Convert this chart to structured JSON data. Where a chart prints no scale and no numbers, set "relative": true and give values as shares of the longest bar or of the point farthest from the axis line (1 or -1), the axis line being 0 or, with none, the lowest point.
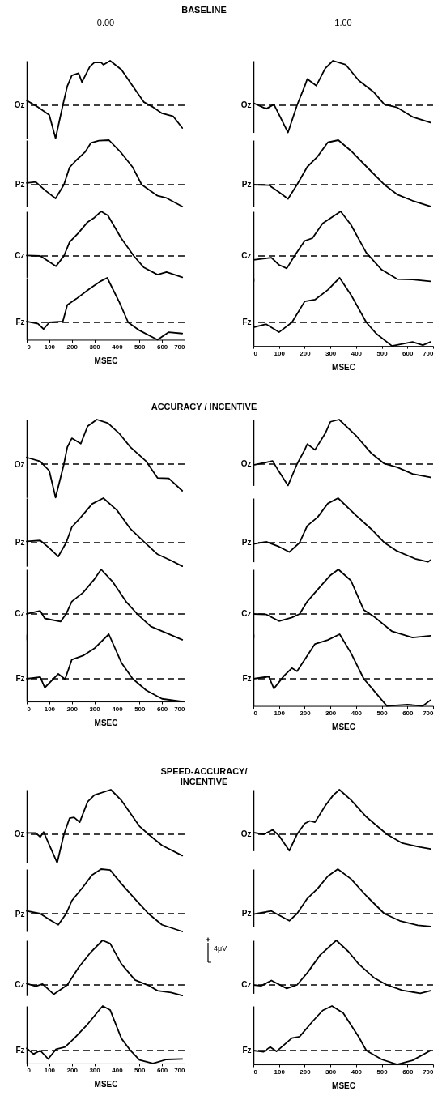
{
  "chart_data": [
    {
      "type": "line",
      "title": "BASELINE",
      "subtitle": "0.00",
      "ylabel": "Oz",
      "relative": true,
      "xlim": [
        0,
        700
      ],
      "tick_labels": false,
      "ref_lines": [
        {
          "axis": "y",
          "value": 0,
          "line_style": "dashed"
        }
      ],
      "x": [
        0,
        50,
        100,
        128,
        160,
        180,
        200,
        230,
        245,
        280,
        300,
        330,
        340,
        370,
        420,
        470,
        520,
        560,
        600,
        650,
        690
      ],
      "series": [
        {
          "color": "#000000",
          "values": [
            0.11,
            -0.04,
            -0.22,
            -0.74,
            0,
            0.43,
            0.67,
            0.72,
            0.52,
            0.87,
            0.96,
            0.96,
            0.91,
            1,
            0.8,
            0.43,
            0.07,
            -0.04,
            -0.18,
            -0.25,
            -0.51
          ]
        }
      ]
    },
    {
      "type": "line",
      "ylabel": "Pz",
      "relative": true,
      "xlim": [
        0,
        700
      ],
      "tick_labels": false,
      "ref_lines": [
        {
          "axis": "y",
          "value": 0,
          "line_style": "dashed"
        }
      ],
      "x": [
        0,
        40,
        80,
        128,
        165,
        190,
        220,
        260,
        285,
        320,
        365,
        420,
        470,
        510,
        580,
        620,
        690
      ],
      "series": [
        {
          "color": "#000000",
          "values": [
            0.04,
            0.06,
            -0.12,
            -0.31,
            0,
            0.39,
            0.55,
            0.74,
            0.94,
            0.99,
            1,
            0.71,
            0.39,
            0,
            -0.25,
            -0.3,
            -0.49
          ]
        }
      ]
    },
    {
      "type": "line",
      "ylabel": "Cz",
      "relative": true,
      "xlim": [
        0,
        700
      ],
      "tick_labels": false,
      "ref_lines": [
        {
          "axis": "y",
          "value": 0,
          "line_style": "dashed"
        }
      ],
      "x": [
        0,
        60,
        100,
        130,
        165,
        190,
        230,
        270,
        300,
        330,
        360,
        420,
        475,
        520,
        580,
        620,
        690
      ],
      "series": [
        {
          "color": "#000000",
          "values": [
            0.01,
            0,
            -0.13,
            -0.23,
            0,
            0.31,
            0.52,
            0.76,
            0.86,
            1,
            0.91,
            0.39,
            0,
            -0.26,
            -0.42,
            -0.36,
            -0.48
          ]
        }
      ]
    },
    {
      "type": "line",
      "ylabel": "Fz",
      "xlabel": "MSEC",
      "relative": true,
      "xlim": [
        0,
        700
      ],
      "xticks": [
        0,
        100,
        200,
        300,
        400,
        500,
        600,
        700
      ],
      "tick_labels": "x",
      "ref_lines": [
        {
          "axis": "y",
          "value": 0,
          "line_style": "dashed"
        }
      ],
      "x": [
        0,
        50,
        75,
        100,
        160,
        180,
        220,
        280,
        330,
        357,
        410,
        450,
        500,
        580,
        630,
        690
      ],
      "series": [
        {
          "color": "#000000",
          "values": [
            0.02,
            -0.03,
            -0.15,
            0,
            0.02,
            0.39,
            0.53,
            0.76,
            0.93,
            1,
            0.46,
            0,
            -0.18,
            -0.39,
            -0.22,
            -0.25
          ]
        }
      ]
    },
    {
      "type": "line",
      "subtitle": "1.00",
      "ylabel": "Oz",
      "relative": true,
      "xlim": [
        0,
        700
      ],
      "tick_labels": false,
      "ref_lines": [
        {
          "axis": "y",
          "value": 0,
          "line_style": "dashed"
        }
      ],
      "x": [
        0,
        50,
        80,
        135,
        170,
        200,
        210,
        245,
        280,
        310,
        360,
        410,
        470,
        510,
        560,
        620,
        690
      ],
      "series": [
        {
          "color": "#000000",
          "values": [
            0.05,
            -0.08,
            0.02,
            -0.61,
            0,
            0.43,
            0.59,
            0.44,
            0.83,
            1,
            0.91,
            0.56,
            0.29,
            0.02,
            -0.05,
            -0.26,
            -0.39
          ]
        }
      ]
    },
    {
      "type": "line",
      "ylabel": "Pz",
      "relative": true,
      "xlim": [
        0,
        700
      ],
      "tick_labels": false,
      "ref_lines": [
        {
          "axis": "y",
          "value": 0,
          "line_style": "dashed"
        }
      ],
      "x": [
        0,
        60,
        100,
        135,
        170,
        210,
        250,
        290,
        331,
        380,
        450,
        510,
        560,
        620,
        690
      ],
      "series": [
        {
          "color": "#000000",
          "values": [
            0,
            -0.01,
            -0.17,
            -0.32,
            0,
            0.4,
            0.63,
            0.95,
            1,
            0.76,
            0.35,
            0,
            -0.22,
            -0.36,
            -0.49
          ]
        }
      ]
    },
    {
      "type": "line",
      "ylabel": "Cz",
      "relative": true,
      "xlim": [
        0,
        700
      ],
      "tick_labels": false,
      "ref_lines": [
        {
          "axis": "y",
          "value": 0,
          "line_style": "dashed"
        }
      ],
      "x": [
        0,
        70,
        100,
        130,
        160,
        200,
        230,
        270,
        340,
        380,
        440,
        500,
        560,
        620,
        690
      ],
      "series": [
        {
          "color": "#000000",
          "values": [
            -0.09,
            -0.04,
            -0.2,
            -0.28,
            0,
            0.34,
            0.4,
            0.73,
            1,
            0.7,
            0.07,
            -0.31,
            -0.52,
            -0.53,
            -0.57
          ]
        }
      ]
    },
    {
      "type": "line",
      "ylabel": "Fz",
      "xlabel": "MSEC",
      "relative": true,
      "xlim": [
        0,
        700
      ],
      "xticks": [
        0,
        100,
        200,
        300,
        400,
        500,
        600,
        700
      ],
      "tick_labels": "x",
      "ref_lines": [
        {
          "axis": "y",
          "value": 0,
          "line_style": "dashed"
        }
      ],
      "x": [
        0,
        50,
        100,
        150,
        200,
        240,
        290,
        336,
        380,
        440,
        480,
        540,
        620,
        660,
        690
      ],
      "series": [
        {
          "color": "#000000",
          "values": [
            -0.11,
            -0.04,
            -0.22,
            0,
            0.47,
            0.51,
            0.73,
            1,
            0.62,
            0,
            -0.26,
            -0.53,
            -0.44,
            -0.51,
            -0.44
          ]
        }
      ]
    },
    {
      "type": "line",
      "title": "ACCURACY / INCENTIVE",
      "ylabel": "Oz",
      "relative": true,
      "xlim": [
        0,
        700
      ],
      "tick_labels": false,
      "ref_lines": [
        {
          "axis": "y",
          "value": 0,
          "line_style": "dashed"
        }
      ],
      "x": [
        0,
        60,
        100,
        128,
        165,
        180,
        200,
        240,
        270,
        311,
        360,
        410,
        460,
        530,
        580,
        630,
        690
      ],
      "series": [
        {
          "color": "#000000",
          "values": [
            0.15,
            0.06,
            -0.15,
            -0.75,
            0,
            0.38,
            0.58,
            0.46,
            0.85,
            1,
            0.92,
            0.69,
            0.38,
            0.06,
            -0.31,
            -0.32,
            -0.6
          ]
        }
      ]
    },
    {
      "type": "line",
      "ylabel": "Pz",
      "relative": true,
      "xlim": [
        0,
        700
      ],
      "tick_labels": false,
      "ref_lines": [
        {
          "axis": "y",
          "value": 0,
          "line_style": "dashed"
        }
      ],
      "x": [
        0,
        60,
        100,
        140,
        175,
        200,
        240,
        290,
        340,
        400,
        460,
        520,
        580,
        640,
        690
      ],
      "series": [
        {
          "color": "#000000",
          "values": [
            0.03,
            0.05,
            -0.12,
            -0.31,
            0,
            0.35,
            0.57,
            0.87,
            1,
            0.73,
            0.31,
            0.02,
            -0.26,
            -0.4,
            -0.53
          ]
        }
      ]
    },
    {
      "type": "line",
      "ylabel": "Cz",
      "relative": true,
      "xlim": [
        0,
        700
      ],
      "tick_labels": false,
      "ref_lines": [
        {
          "axis": "y",
          "value": 0,
          "line_style": "dashed"
        }
      ],
      "x": [
        0,
        60,
        80,
        150,
        175,
        200,
        250,
        300,
        330,
        380,
        440,
        490,
        550,
        620,
        690
      ],
      "series": [
        {
          "color": "#000000",
          "values": [
            0,
            0.07,
            -0.1,
            -0.17,
            0,
            0.28,
            0.48,
            0.78,
            1,
            0.73,
            0.28,
            0,
            -0.28,
            -0.43,
            -0.58
          ]
        }
      ]
    },
    {
      "type": "line",
      "ylabel": "Fz",
      "xlabel": "MSEC",
      "relative": true,
      "xlim": [
        0,
        700
      ],
      "xticks": [
        0,
        100,
        200,
        300,
        400,
        500,
        600,
        700
      ],
      "tick_labels": "x",
      "ref_lines": [
        {
          "axis": "y",
          "value": 0,
          "line_style": "dashed"
        }
      ],
      "x": [
        0,
        60,
        80,
        140,
        170,
        200,
        250,
        300,
        364,
        420,
        470,
        530,
        600,
        690
      ],
      "series": [
        {
          "color": "#000000",
          "values": [
            0,
            0.04,
            -0.2,
            0.11,
            -0.01,
            0.43,
            0.52,
            0.68,
            1,
            0.36,
            0,
            -0.26,
            -0.45,
            -0.51
          ]
        }
      ]
    },
    {
      "type": "line",
      "ylabel": "Oz",
      "relative": true,
      "xlim": [
        0,
        700
      ],
      "tick_labels": false,
      "ref_lines": [
        {
          "axis": "y",
          "value": 0,
          "line_style": "dashed"
        }
      ],
      "x": [
        0,
        50,
        75,
        100,
        135,
        170,
        200,
        210,
        240,
        280,
        300,
        334,
        400,
        460,
        510,
        560,
        620,
        690
      ],
      "series": [
        {
          "color": "#000000",
          "values": [
            -0.02,
            0.04,
            0.07,
            -0.17,
            -0.48,
            0,
            0.32,
            0.45,
            0.32,
            0.69,
            0.95,
            1,
            0.64,
            0.24,
            0.01,
            -0.07,
            -0.22,
            -0.3
          ]
        }
      ]
    },
    {
      "type": "line",
      "ylabel": "Pz",
      "relative": true,
      "xlim": [
        0,
        700
      ],
      "tick_labels": false,
      "ref_lines": [
        {
          "axis": "y",
          "value": 0,
          "line_style": "dashed"
        }
      ],
      "x": [
        0,
        50,
        100,
        140,
        180,
        210,
        250,
        290,
        330,
        400,
        460,
        510,
        560,
        630,
        680,
        690
      ],
      "series": [
        {
          "color": "#000000",
          "values": [
            -0.03,
            0.02,
            -0.09,
            -0.21,
            0,
            0.38,
            0.57,
            0.88,
            1,
            0.61,
            0.3,
            0,
            -0.19,
            -0.36,
            -0.43,
            -0.39
          ]
        }
      ]
    },
    {
      "type": "line",
      "ylabel": "Cz",
      "relative": true,
      "xlim": [
        0,
        700
      ],
      "tick_labels": false,
      "ref_lines": [
        {
          "axis": "y",
          "value": 0,
          "line_style": "dashed"
        }
      ],
      "x": [
        0,
        50,
        100,
        150,
        180,
        210,
        260,
        300,
        331,
        380,
        430,
        470,
        540,
        620,
        690
      ],
      "series": [
        {
          "color": "#000000",
          "values": [
            0,
            -0.01,
            -0.16,
            -0.08,
            0,
            0.28,
            0.61,
            0.87,
            1,
            0.75,
            0.09,
            -0.06,
            -0.39,
            -0.53,
            -0.49
          ]
        }
      ]
    },
    {
      "type": "line",
      "ylabel": "Fz",
      "xlabel": "MSEC",
      "relative": true,
      "xlim": [
        0,
        700
      ],
      "xticks": [
        0,
        100,
        200,
        300,
        400,
        500,
        600,
        700
      ],
      "tick_labels": "x",
      "ref_lines": [
        {
          "axis": "y",
          "value": 0,
          "line_style": "dashed"
        }
      ],
      "x": [
        0,
        60,
        80,
        120,
        150,
        170,
        240,
        290,
        336,
        380,
        430,
        470,
        520,
        600,
        660,
        690
      ],
      "series": [
        {
          "color": "#000000",
          "values": [
            0,
            0.05,
            -0.22,
            0.07,
            0.24,
            0.17,
            0.78,
            0.87,
            1,
            0.58,
            0,
            -0.27,
            -0.61,
            -0.58,
            -0.61,
            -0.48
          ]
        }
      ]
    },
    {
      "type": "line",
      "title": "SPEED-ACCURACY/ INCENTIVE",
      "ylabel": "Oz",
      "relative": true,
      "xlim": [
        0,
        700
      ],
      "tick_labels": false,
      "ref_lines": [
        {
          "axis": "y",
          "value": 0,
          "line_style": "dashed"
        }
      ],
      "x": [
        0,
        40,
        60,
        75,
        100,
        135,
        165,
        190,
        210,
        235,
        270,
        300,
        373,
        420,
        500,
        540,
        600,
        690
      ],
      "series": [
        {
          "color": "#000000",
          "values": [
            0.03,
            0.03,
            -0.06,
            0.05,
            -0.24,
            -0.64,
            0,
            0.36,
            0.38,
            0.27,
            0.73,
            0.88,
            1,
            0.76,
            0.18,
            0,
            -0.25,
            -0.48
          ]
        }
      ]
    },
    {
      "type": "line",
      "ylabel": "Pz",
      "relative": true,
      "xlim": [
        0,
        700
      ],
      "tick_labels": false,
      "ref_lines": [
        {
          "axis": "y",
          "value": 0,
          "line_style": "dashed"
        }
      ],
      "x": [
        0,
        60,
        100,
        140,
        175,
        200,
        250,
        290,
        330,
        370,
        420,
        480,
        540,
        600,
        690
      ],
      "series": [
        {
          "color": "#000000",
          "values": [
            0.06,
            0,
            -0.13,
            -0.25,
            0,
            0.29,
            0.6,
            0.87,
            1,
            0.98,
            0.67,
            0.33,
            0,
            -0.25,
            -0.4
          ]
        }
      ]
    },
    {
      "type": "line",
      "ylabel": "Cz",
      "relative": true,
      "xlim": [
        0,
        700
      ],
      "tick_labels": false,
      "ref_lines": [
        {
          "axis": "y",
          "value": 0,
          "line_style": "dashed"
        }
      ],
      "x": [
        0,
        40,
        70,
        90,
        120,
        180,
        230,
        280,
        336,
        370,
        420,
        480,
        540,
        580,
        640,
        690
      ],
      "series": [
        {
          "color": "#000000",
          "values": [
            0.03,
            -0.03,
            0.02,
            -0.07,
            -0.21,
            0,
            0.39,
            0.71,
            1,
            0.93,
            0.47,
            0.11,
            -0.01,
            -0.13,
            -0.17,
            -0.24
          ]
        }
      ]
    },
    {
      "type": "line",
      "ylabel": "Fz",
      "xlabel": "MSEC",
      "relative": true,
      "xlim": [
        0,
        700
      ],
      "xticks": [
        0,
        100,
        200,
        300,
        400,
        500,
        600,
        700
      ],
      "tick_labels": "x",
      "ref_lines": [
        {
          "axis": "y",
          "value": 0,
          "line_style": "dashed"
        }
      ],
      "annotations": [
        "4μV"
      ],
      "x": [
        0,
        30,
        60,
        95,
        130,
        170,
        210,
        270,
        320,
        337,
        370,
        420,
        460,
        500,
        560,
        620,
        690
      ],
      "series": [
        {
          "color": "#000000",
          "values": [
            0.05,
            -0.08,
            0,
            -0.19,
            0.03,
            0.08,
            0.27,
            0.59,
            0.9,
            1,
            0.91,
            0.27,
            0,
            -0.21,
            -0.29,
            -0.2,
            -0.19
          ]
        }
      ]
    },
    {
      "type": "line",
      "ylabel": "Oz",
      "relative": true,
      "xlim": [
        0,
        700
      ],
      "tick_labels": false,
      "ref_lines": [
        {
          "axis": "y",
          "value": 0,
          "line_style": "dashed"
        }
      ],
      "x": [
        0,
        40,
        75,
        100,
        140,
        170,
        200,
        220,
        240,
        280,
        310,
        335,
        380,
        440,
        520,
        580,
        650,
        690
      ],
      "series": [
        {
          "color": "#000000",
          "values": [
            0.04,
            0,
            0.1,
            -0.03,
            -0.37,
            0,
            0.24,
            0.3,
            0.27,
            0.64,
            0.87,
            1,
            0.77,
            0.39,
            0,
            -0.2,
            -0.29,
            -0.33
          ]
        }
      ]
    },
    {
      "type": "line",
      "ylabel": "Pz",
      "relative": true,
      "xlim": [
        0,
        700
      ],
      "tick_labels": false,
      "ref_lines": [
        {
          "axis": "y",
          "value": 0,
          "line_style": "dashed"
        }
      ],
      "x": [
        0,
        70,
        140,
        170,
        210,
        250,
        290,
        329,
        380,
        440,
        510,
        570,
        640,
        690
      ],
      "series": [
        {
          "color": "#000000",
          "values": [
            -0.01,
            0.06,
            -0.16,
            0,
            0.34,
            0.56,
            0.84,
            1,
            0.78,
            0.4,
            0,
            -0.16,
            -0.26,
            -0.29
          ]
        }
      ]
    },
    {
      "type": "line",
      "ylabel": "Cz",
      "relative": true,
      "xlim": [
        0,
        700
      ],
      "tick_labels": false,
      "ref_lines": [
        {
          "axis": "y",
          "value": 0,
          "line_style": "dashed"
        }
      ],
      "x": [
        0,
        30,
        70,
        130,
        170,
        210,
        260,
        323,
        370,
        410,
        470,
        520,
        580,
        650,
        690
      ],
      "series": [
        {
          "color": "#000000",
          "values": [
            0,
            -0.02,
            0.1,
            -0.08,
            0,
            0.27,
            0.67,
            1,
            0.75,
            0.47,
            0.16,
            0,
            -0.12,
            -0.19,
            -0.13
          ]
        }
      ]
    },
    {
      "type": "line",
      "ylabel": "Fz",
      "xlabel": "MSEC",
      "relative": true,
      "xlim": [
        0,
        700
      ],
      "xticks": [
        0,
        100,
        200,
        300,
        400,
        500,
        600,
        700
      ],
      "tick_labels": "x",
      "ref_lines": [
        {
          "axis": "y",
          "value": 0,
          "line_style": "dashed"
        }
      ],
      "x": [
        0,
        40,
        65,
        90,
        150,
        180,
        230,
        270,
        306,
        350,
        410,
        440,
        500,
        560,
        620,
        690
      ],
      "series": [
        {
          "color": "#000000",
          "values": [
            0,
            -0.03,
            0.08,
            -0.02,
            0.28,
            0.31,
            0.65,
            0.9,
            1,
            0.84,
            0.31,
            0,
            -0.2,
            -0.31,
            -0.22,
            0
          ]
        }
      ]
    }
  ]
}
